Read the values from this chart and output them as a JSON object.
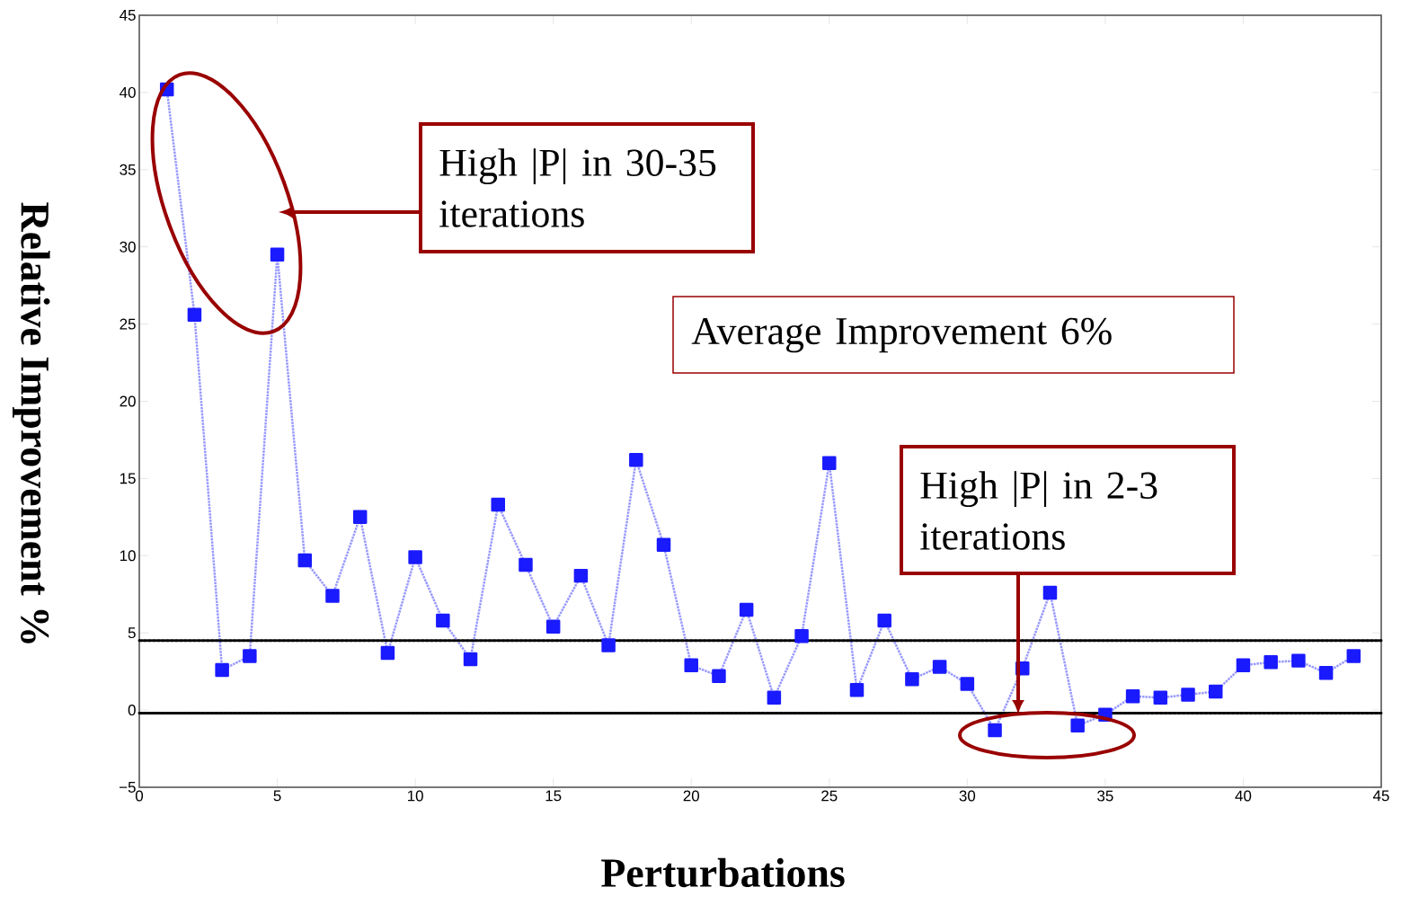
{
  "chart_data": {
    "type": "line",
    "xlabel": "Perturbations",
    "ylabel": "Relative  Improvement %",
    "xlim": [
      0,
      45
    ],
    "xticks": [
      0,
      5,
      10,
      15,
      20,
      25,
      30,
      35,
      40,
      45
    ],
    "ylim": [
      -5,
      45
    ],
    "yticks": [
      {
        "value": -5,
        "label": "−5"
      },
      0,
      5,
      10,
      15,
      20,
      25,
      30,
      35,
      40,
      45
    ],
    "x": [
      1,
      2,
      3,
      4,
      5,
      6,
      7,
      8,
      9,
      10,
      11,
      12,
      13,
      14,
      15,
      16,
      17,
      18,
      19,
      20,
      21,
      22,
      23,
      24,
      25,
      26,
      27,
      28,
      29,
      30,
      31,
      32,
      33,
      34,
      35,
      36,
      37,
      38,
      39,
      40,
      41,
      42,
      43,
      44
    ],
    "series": [
      {
        "color": "#1a1aff",
        "values": [
          40.2,
          25.6,
          2.6,
          3.5,
          29.5,
          9.7,
          7.4,
          12.5,
          3.7,
          9.9,
          5.8,
          3.3,
          13.3,
          9.4,
          5.4,
          8.7,
          4.2,
          16.2,
          10.7,
          2.9,
          2.2,
          6.5,
          0.8,
          4.8,
          16.0,
          1.3,
          5.8,
          2.0,
          2.8,
          1.7,
          -1.3,
          2.7,
          7.6,
          -1.0,
          -0.3,
          0.9,
          0.8,
          1.0,
          1.2,
          2.9,
          3.1,
          3.2,
          2.4,
          3.5
        ]
      }
    ],
    "marker": "square",
    "line_style": "dotted",
    "grid": false,
    "ref_lines": [
      {
        "axis": "y",
        "value": 4.5,
        "color": "#000000",
        "line_style": "dotted"
      },
      {
        "axis": "y",
        "value": -0.2,
        "color": "#000000",
        "line_style": "dotted"
      }
    ],
    "annotations": [
      "High |P| in 30-35 iterations",
      "Average Improvement 6%",
      "High |P| in 2-3 iterations"
    ]
  }
}
